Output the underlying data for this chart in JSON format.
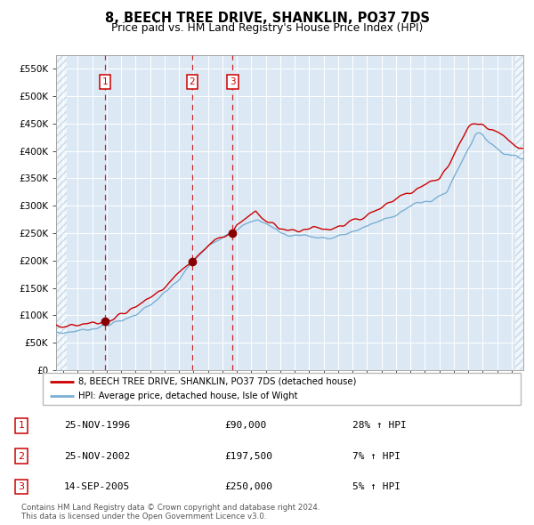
{
  "title": "8, BEECH TREE DRIVE, SHANKLIN, PO37 7DS",
  "subtitle": "Price paid vs. HM Land Registry's House Price Index (HPI)",
  "background_color": "#dce9f5",
  "red_line_color": "#cc0000",
  "blue_line_color": "#7bafd4",
  "dashed_vline_color": "#cc0000",
  "marker_color": "#880000",
  "ylim": [
    0,
    575000
  ],
  "yticks": [
    0,
    50000,
    100000,
    150000,
    200000,
    250000,
    300000,
    350000,
    400000,
    450000,
    500000,
    550000
  ],
  "ytick_labels": [
    "£0",
    "£50K",
    "£100K",
    "£150K",
    "£200K",
    "£250K",
    "£300K",
    "£350K",
    "£400K",
    "£450K",
    "£500K",
    "£550K"
  ],
  "legend_label_red": "8, BEECH TREE DRIVE, SHANKLIN, PO37 7DS (detached house)",
  "legend_label_blue": "HPI: Average price, detached house, Isle of Wight",
  "sale_info": [
    {
      "label": "1",
      "date": "25-NOV-1996",
      "price": "£90,000",
      "hpi": "28% ↑ HPI"
    },
    {
      "label": "2",
      "date": "25-NOV-2002",
      "price": "£197,500",
      "hpi": "7% ↑ HPI"
    },
    {
      "label": "3",
      "date": "14-SEP-2005",
      "price": "£250,000",
      "hpi": "5% ↑ HPI"
    }
  ],
  "footer": "Contains HM Land Registry data © Crown copyright and database right 2024.\nThis data is licensed under the Open Government Licence v3.0.",
  "xstart": 1993.5,
  "xend": 2025.8,
  "sale_years": [
    1996.9,
    2002.9,
    2005.7
  ],
  "sale_prices": [
    90000,
    197500,
    250000
  ],
  "sale_labels": [
    "1",
    "2",
    "3"
  ]
}
